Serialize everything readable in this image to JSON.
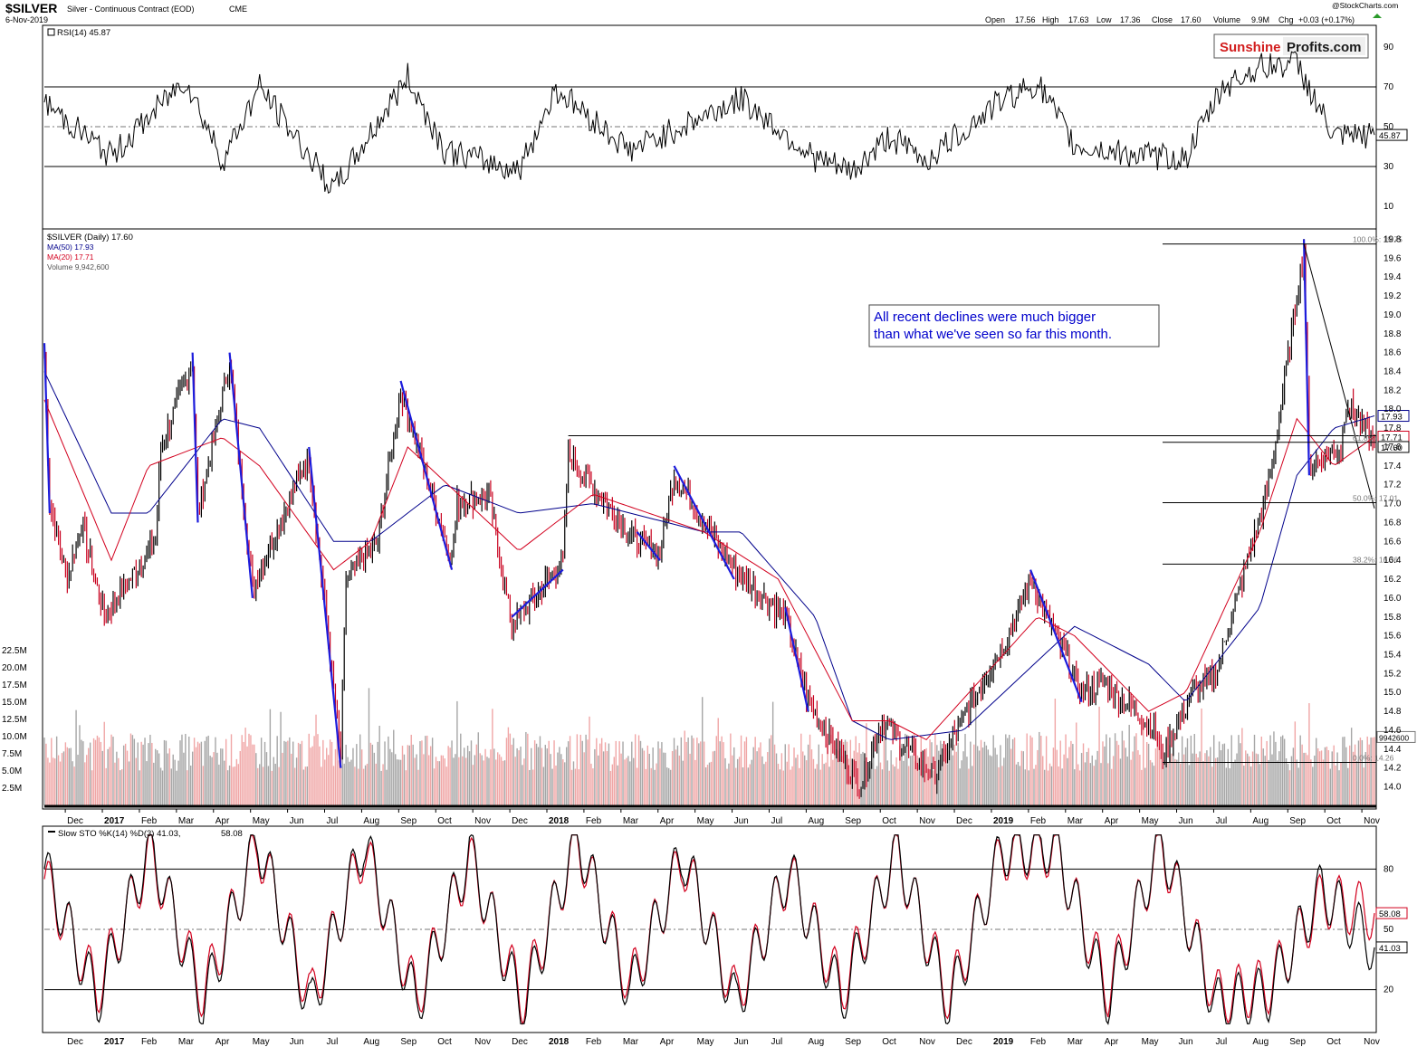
{
  "header": {
    "symbol": "$SILVER",
    "description": "Silver - Continuous Contract (EOD)",
    "exchange": "CME",
    "date": "6-Nov-2019",
    "watermark": "@StockCharts.com",
    "ohlc": {
      "open_label": "Open",
      "open": "17.56",
      "high_label": "High",
      "high": "17.63",
      "low_label": "Low",
      "low": "17.36",
      "close_label": "Close",
      "close": "17.60",
      "volume_label": "Volume",
      "volume": "9.9M",
      "chg_label": "Chg",
      "chg": "+0.03 (+0.17%)"
    }
  },
  "logo": {
    "part1": "Sunshine",
    "part2": "Profits.com"
  },
  "annotation": {
    "line1": "All recent declines were much bigger",
    "line2": "than what we've seen so far this month."
  },
  "colors": {
    "price_up": "#000000",
    "price_down": "#c8001e",
    "ma50": "#00008b",
    "ma20": "#d2001e",
    "annot_text": "#0000cc",
    "blue_trend": "#1c1cdc",
    "vol_up": "#a6a6a6",
    "vol_down": "#f0a6a6",
    "rsi_over": "#3a6b3a",
    "rsi_under": "#8b3a3a",
    "logo_red": "#d21e1e"
  },
  "rsi_panel": {
    "legend": "RSI(14) 45.87",
    "current_label": "45.87",
    "levels": [
      "90",
      "70",
      "50",
      "30",
      "10"
    ]
  },
  "price_panel": {
    "legend": {
      "symbol": "$SILVER (Daily) 17.60",
      "ma50": "MA(50) 17.93",
      "ma20": "MA(20) 17.71",
      "volume": "Volume 9,942,600"
    },
    "price_axis": [
      "19.8",
      "19.6",
      "19.4",
      "19.2",
      "19.0",
      "18.8",
      "18.6",
      "18.4",
      "18.2",
      "18.0",
      "17.8",
      "17.6",
      "17.4",
      "17.2",
      "17.0",
      "16.8",
      "16.6",
      "16.4",
      "16.2",
      "16.0",
      "15.8",
      "15.6",
      "15.4",
      "15.2",
      "15.0",
      "14.8",
      "14.6",
      "14.4",
      "14.2",
      "14.0"
    ],
    "volume_axis": [
      "22.5M",
      "20.0M",
      "17.5M",
      "15.0M",
      "12.5M",
      "10.0M",
      "7.5M",
      "5.0M",
      "2.5M"
    ],
    "right_badges": {
      "ma50": "17.93",
      "ma20": "17.71",
      "close": "17.60",
      "volume": "9942600"
    },
    "fib": [
      {
        "text": "100.0%: 19.75",
        "value": 19.75
      },
      {
        "text": "61.8%: 17.65",
        "value": 17.65
      },
      {
        "text": "50.0%: 17.01",
        "value": 17.01
      },
      {
        "text": "38.2%: 16.36",
        "value": 16.36
      },
      {
        "text": "0.0%: 14.26",
        "value": 14.26
      }
    ]
  },
  "sto_panel": {
    "legend_k": "Slow STO %K(14) %D(3) 41.03,",
    "legend_d": "58.08",
    "current_d": "58.08",
    "current_k": "41.03",
    "levels": [
      "80",
      "50",
      "20"
    ]
  },
  "month_axis": [
    "Dec",
    "2017",
    "Feb",
    "Mar",
    "Apr",
    "May",
    "Jun",
    "Jul",
    "Aug",
    "Sep",
    "Oct",
    "Nov",
    "Dec",
    "2018",
    "Feb",
    "Mar",
    "Apr",
    "May",
    "Jun",
    "Jul",
    "Aug",
    "Sep",
    "Oct",
    "Nov",
    "Dec",
    "2019",
    "Feb",
    "Mar",
    "Apr",
    "May",
    "Jun",
    "Jul",
    "Aug",
    "Sep",
    "Oct",
    "Nov"
  ],
  "chart_data": [
    {
      "type": "line",
      "title": "RSI(14)",
      "ylim": [
        0,
        100
      ],
      "reference_lines": [
        70,
        50,
        30
      ],
      "x": [
        "Nov 2016",
        "Jan 2017",
        "Mar 2017",
        "Apr 2017",
        "May 2017",
        "Jul 2017",
        "Sep 2017",
        "Oct 2017",
        "Dec 2017",
        "Jan 2018",
        "Mar 2018",
        "Jun 2018",
        "Aug 2018",
        "Sep 2018",
        "Oct 2018",
        "Nov 2018",
        "Jan 2019",
        "Feb 2019",
        "Mar 2019",
        "May 2019",
        "Jun 2019",
        "Jul 2019",
        "Aug 2019",
        "Sep 2019",
        "Oct 2019",
        "Nov 2019"
      ],
      "values": [
        62,
        35,
        74,
        33,
        70,
        18,
        75,
        38,
        28,
        69,
        38,
        64,
        34,
        27,
        45,
        33,
        63,
        72,
        40,
        35,
        34,
        70,
        80,
        82,
        44,
        45.87
      ]
    },
    {
      "type": "line",
      "title": "$SILVER (Daily)",
      "ylim": [
        13.9,
        19.9
      ],
      "x_range": [
        "Nov 2016",
        "Nov 2019"
      ],
      "series": [
        {
          "name": "$SILVER",
          "x": [
            "Nov 2016",
            "Nov 2016",
            "Dec 2016",
            "Dec 2016",
            "Jan 2017",
            "Feb 2017",
            "Feb 2017",
            "Mar 2017",
            "Mar 2017",
            "Apr 2017",
            "May 2017",
            "Jun 2017",
            "Jun 2017",
            "Jul 2017",
            "Jul 2017",
            "Aug 2017",
            "Sep 2017",
            "Oct 2017",
            "Oct 2017",
            "Nov 2017",
            "Dec 2017",
            "Jan 2018",
            "Jan 2018",
            "Mar 2018",
            "Apr 2018",
            "Apr 2018",
            "Jun 2018",
            "Jul 2018",
            "Aug 2018",
            "Sep 2018",
            "Oct 2018",
            "Nov 2018",
            "Dec 2018",
            "Jan 2019",
            "Feb 2019",
            "Mar 2019",
            "Apr 2019",
            "May 2019",
            "May 2019",
            "Jun 2019",
            "Jul 2019",
            "Aug 2019",
            "Aug 2019",
            "Sep 2019",
            "Sep 2019",
            "Oct 2019",
            "Oct 2019",
            "Nov 2019"
          ],
          "values": [
            18.6,
            17.0,
            16.2,
            16.8,
            15.8,
            16.6,
            17.6,
            18.5,
            16.9,
            18.5,
            16.1,
            17.4,
            17.5,
            14.3,
            16.2,
            16.6,
            18.2,
            16.4,
            17.0,
            17.1,
            15.7,
            16.4,
            17.5,
            16.6,
            16.5,
            17.3,
            16.3,
            15.8,
            14.9,
            14.0,
            14.7,
            14.1,
            14.6,
            15.6,
            16.2,
            15.0,
            15.1,
            14.6,
            14.3,
            15.0,
            15.2,
            17.1,
            17.4,
            19.7,
            17.4,
            17.6,
            18.1,
            17.6
          ]
        },
        {
          "name": "MA(50)",
          "x": [
            "Nov 2016",
            "Jan 2017",
            "Feb 2017",
            "Apr 2017",
            "May 2017",
            "Jul 2017",
            "Aug 2017",
            "Oct 2017",
            "Dec 2017",
            "Feb 2018",
            "May 2018",
            "Jun 2018",
            "Aug 2018",
            "Sep 2018",
            "Oct 2018",
            "Dec 2018",
            "Mar 2019",
            "May 2019",
            "Jun 2019",
            "Aug 2019",
            "Sep 2019",
            "Oct 2019",
            "Nov 2019"
          ],
          "values": [
            18.4,
            16.9,
            16.9,
            17.9,
            17.8,
            16.6,
            16.6,
            17.2,
            16.9,
            17.0,
            16.7,
            16.7,
            15.8,
            14.7,
            14.5,
            14.6,
            15.7,
            15.3,
            14.9,
            15.9,
            17.3,
            17.8,
            17.93
          ]
        },
        {
          "name": "MA(20)",
          "x": [
            "Nov 2016",
            "Jan 2017",
            "Feb 2017",
            "Apr 2017",
            "May 2017",
            "Jul 2017",
            "Aug 2017",
            "Sep 2017",
            "Dec 2017",
            "Feb 2018",
            "May 2018",
            "Jul 2018",
            "Sep 2018",
            "Oct 2018",
            "Nov 2018",
            "Feb 2019",
            "Mar 2019",
            "May 2019",
            "Jun 2019",
            "Aug 2019",
            "Sep 2019",
            "Oct 2019",
            "Nov 2019"
          ],
          "values": [
            18.1,
            16.4,
            17.4,
            17.7,
            17.4,
            16.3,
            16.6,
            17.6,
            16.5,
            17.1,
            16.7,
            16.2,
            14.7,
            14.7,
            14.5,
            15.8,
            15.6,
            14.8,
            15.0,
            16.7,
            17.9,
            17.4,
            17.71
          ]
        }
      ]
    },
    {
      "type": "bar",
      "title": "Volume",
      "ylim": [
        0,
        25000000
      ],
      "x_range": [
        "Nov 2016",
        "Nov 2019"
      ],
      "values": [
        9942600
      ]
    },
    {
      "type": "line",
      "title": "Slow STO %K(14) %D(3)",
      "ylim": [
        0,
        100
      ],
      "reference_lines": [
        80,
        50,
        20
      ],
      "series": [
        {
          "name": "%K(14)",
          "values": [
            80,
            15,
            92,
            12,
            95,
            10,
            94,
            12,
            88,
            10,
            97,
            18,
            88,
            12,
            80,
            15,
            90,
            12,
            90,
            92,
            15,
            95,
            12,
            18,
            70,
            41.03
          ]
        },
        {
          "name": "%D(3)",
          "values": [
            75,
            20,
            88,
            18,
            92,
            15,
            90,
            16,
            85,
            15,
            94,
            22,
            85,
            16,
            78,
            20,
            88,
            16,
            88,
            90,
            20,
            92,
            16,
            22,
            65,
            58.08
          ]
        }
      ]
    }
  ]
}
